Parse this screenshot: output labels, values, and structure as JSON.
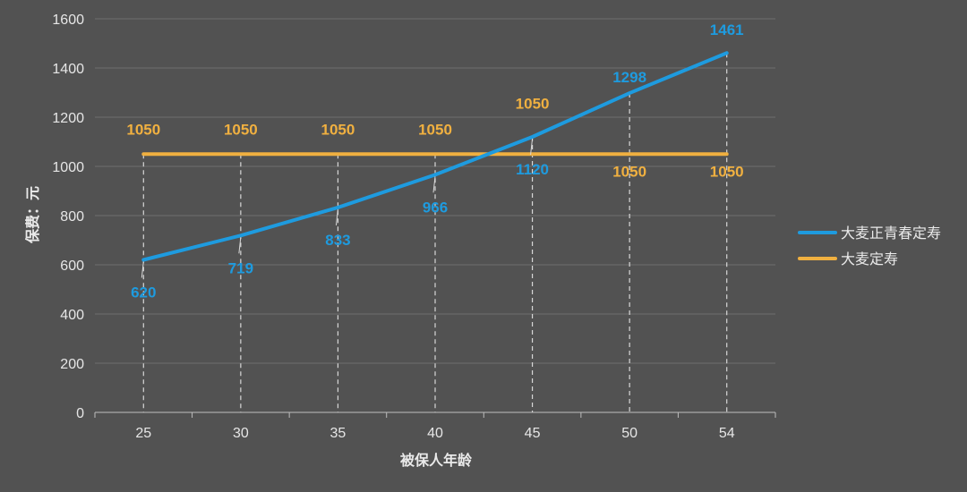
{
  "chart_data": {
    "type": "line",
    "x": [
      25,
      30,
      35,
      40,
      45,
      50,
      54
    ],
    "x_tick_labels": [
      "25",
      "30",
      "35",
      "40",
      "45",
      "50",
      "54"
    ],
    "xlabel": "被保人年龄",
    "ylabel": "保费：元",
    "ylim": [
      0,
      1600
    ],
    "y_ticks": [
      0,
      200,
      400,
      600,
      800,
      1000,
      1200,
      1400,
      1600
    ],
    "grid": true,
    "legend_position": "right",
    "series": [
      {
        "name": "大麦正青春定寿",
        "color": "#1E9BDF",
        "values": [
          620,
          719,
          833,
          966,
          1120,
          1298,
          1461
        ],
        "labels": [
          "620",
          "719",
          "833",
          "966",
          "1120",
          "1298",
          "1461"
        ]
      },
      {
        "name": "大麦定寿",
        "color": "#F0B040",
        "values": [
          1050,
          1050,
          1050,
          1050,
          1050,
          1050,
          1050
        ],
        "labels": [
          "1050",
          "1050",
          "1050",
          "1050",
          "1050",
          "1050",
          "1050"
        ]
      }
    ]
  }
}
